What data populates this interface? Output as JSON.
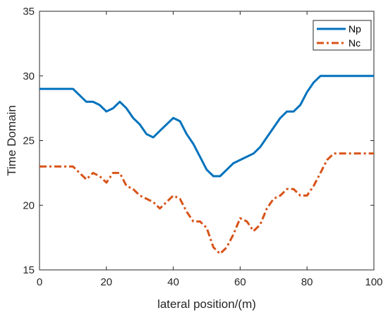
{
  "chart_data": {
    "type": "line",
    "title": "",
    "xlabel": "lateral position/(m)",
    "ylabel": "Time Domain",
    "xlim": [
      0,
      100
    ],
    "ylim": [
      15,
      35
    ],
    "xticks": [
      0,
      20,
      40,
      60,
      80,
      100
    ],
    "yticks": [
      15,
      20,
      25,
      30,
      35
    ],
    "xtick_labels": [
      "0",
      "20",
      "40",
      "60",
      "80",
      "100"
    ],
    "ytick_labels": [
      "15",
      "20",
      "25",
      "30",
      "35"
    ],
    "grid": false,
    "legend_position": "top-right",
    "series": [
      {
        "name": "Np",
        "color": "#0072BD",
        "style": "solid",
        "x": [
          0,
          10,
          14,
          16,
          18,
          20,
          22,
          24,
          26,
          28,
          30,
          32,
          34,
          36,
          38,
          40,
          42,
          44,
          46,
          48,
          50,
          52,
          54,
          56,
          58,
          60,
          62,
          64,
          66,
          68,
          70,
          72,
          74,
          76,
          78,
          80,
          82,
          84,
          86,
          88,
          90,
          100
        ],
        "y": [
          29,
          29,
          28,
          28,
          27.75,
          27.25,
          27.5,
          28,
          27.5,
          26.75,
          26.25,
          25.5,
          25.25,
          25.75,
          26.25,
          26.75,
          26.5,
          25.5,
          24.75,
          23.75,
          22.75,
          22.25,
          22.25,
          22.75,
          23.25,
          23.5,
          23.75,
          24,
          24.5,
          25.25,
          26,
          26.75,
          27.25,
          27.25,
          27.75,
          28.75,
          29.5,
          30,
          30,
          30,
          30,
          30
        ]
      },
      {
        "name": "Nc",
        "color": "#D95319",
        "style": "dash-dot",
        "x": [
          0,
          10,
          12,
          14,
          16,
          18,
          20,
          22,
          24,
          26,
          28,
          30,
          32,
          34,
          36,
          38,
          40,
          42,
          44,
          46,
          48,
          50,
          52,
          54,
          56,
          58,
          60,
          62,
          64,
          66,
          68,
          70,
          72,
          74,
          76,
          78,
          80,
          82,
          84,
          86,
          88,
          90,
          100
        ],
        "y": [
          23,
          23,
          22.5,
          22,
          22.5,
          22.25,
          21.75,
          22.5,
          22.5,
          21.5,
          21.25,
          20.75,
          20.5,
          20.25,
          19.75,
          20.25,
          20.75,
          20.5,
          19.5,
          18.75,
          18.75,
          18.25,
          16.75,
          16.25,
          16.75,
          17.75,
          19,
          18.75,
          18,
          18.5,
          19.75,
          20.5,
          20.75,
          21.25,
          21.25,
          20.75,
          20.75,
          21.5,
          22.5,
          23.5,
          24,
          24,
          24
        ]
      }
    ]
  }
}
